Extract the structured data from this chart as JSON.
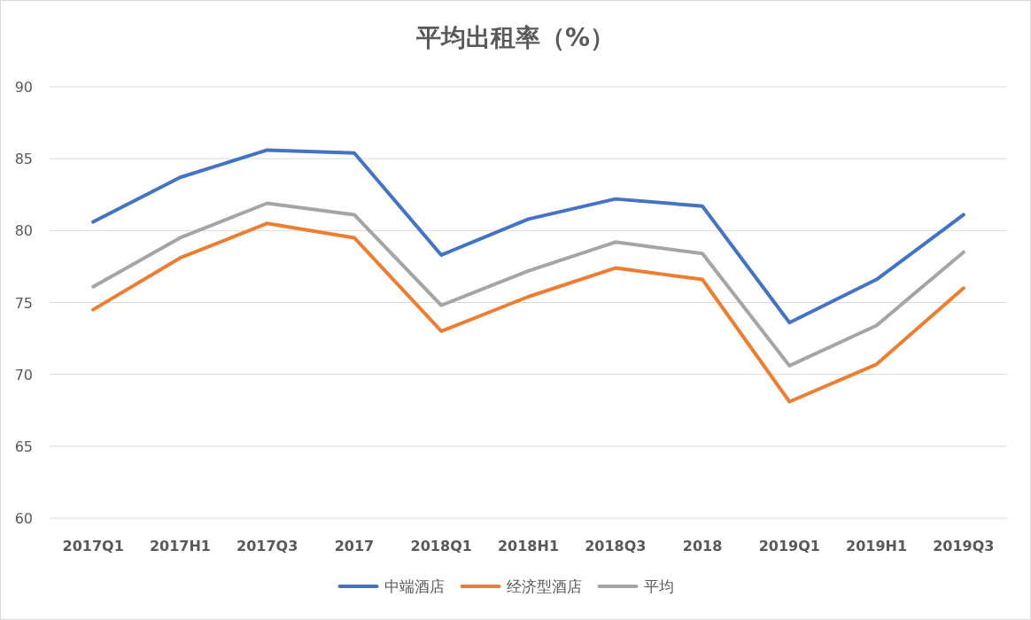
{
  "chart_data": {
    "type": "line",
    "title": "平均出租率（%）",
    "categories": [
      "2017Q1",
      "2017H1",
      "2017Q3",
      "2017",
      "2018Q1",
      "2018H1",
      "2018Q3",
      "2018",
      "2019Q1",
      "2019H1",
      "2019Q3"
    ],
    "series": [
      {
        "name": "中端酒店",
        "color": "#4472c4",
        "values": [
          80.6,
          83.7,
          85.6,
          85.4,
          78.3,
          80.8,
          82.2,
          81.7,
          73.6,
          76.6,
          81.1
        ]
      },
      {
        "name": "经济型酒店",
        "color": "#ed7d31",
        "values": [
          74.5,
          78.1,
          80.5,
          79.5,
          73.0,
          75.4,
          77.4,
          76.6,
          68.1,
          70.7,
          76.0
        ]
      },
      {
        "name": "平均",
        "color": "#a5a5a5",
        "values": [
          76.1,
          79.5,
          81.9,
          81.1,
          74.8,
          77.2,
          79.2,
          78.4,
          70.6,
          73.4,
          78.5
        ]
      }
    ],
    "ylim": [
      60,
      90
    ],
    "yticks": [
      60,
      65,
      70,
      75,
      80,
      85,
      90
    ],
    "grid": "y",
    "legend": "bottom",
    "marker": "none",
    "line_style": "solid"
  }
}
